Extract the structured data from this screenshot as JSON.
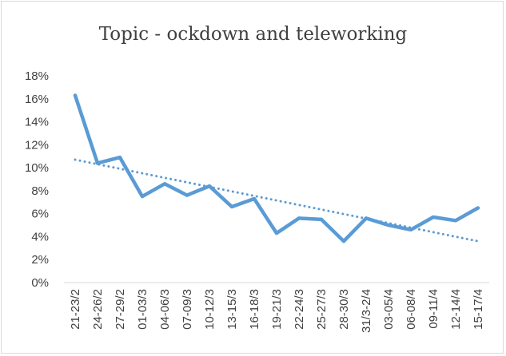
{
  "chart_data": {
    "type": "line",
    "title": "Topic - ockdown and teleworking",
    "xlabel": "",
    "ylabel": "",
    "categories": [
      "21-23/2",
      "24-26/2",
      "27-29/2",
      "01-03/3",
      "04-06/3",
      "07-09/3",
      "10-12/3",
      "13-15/3",
      "16-18/3",
      "19-21/3",
      "22-24/3",
      "25-27/3",
      "28-30/3",
      "31/3-2/4",
      "03-05/4",
      "06-08/4",
      "09-11/4",
      "12-14/4",
      "15-17/4"
    ],
    "series": [
      {
        "values": [
          16.3,
          10.4,
          10.9,
          7.5,
          8.6,
          7.6,
          8.4,
          6.6,
          7.3,
          4.3,
          5.6,
          5.5,
          3.6,
          5.6,
          5.0,
          4.6,
          5.7,
          5.4,
          6.5
        ]
      }
    ],
    "trendline": {
      "type": "linear",
      "style": "dotted",
      "start": 10.7,
      "end": 3.6
    },
    "ylim": [
      0,
      18
    ],
    "yticks": [
      "0%",
      "2%",
      "4%",
      "6%",
      "8%",
      "10%",
      "12%",
      "14%",
      "16%",
      "18%"
    ],
    "grid": false,
    "legend": "none",
    "colors": {
      "series": "#5b9bd5",
      "axis": "#d9d9d9",
      "text": "#404040"
    }
  }
}
